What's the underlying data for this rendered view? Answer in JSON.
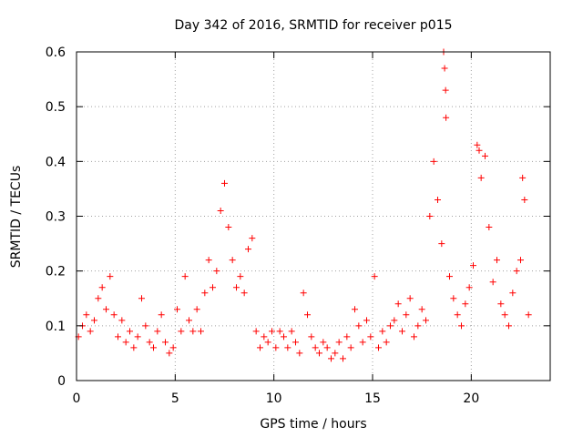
{
  "chart_data": {
    "type": "scatter",
    "title": "Day 342 of 2016, SRMTID for receiver p015",
    "xlabel": "GPS time / hours",
    "ylabel": "SRMTID / TECUs",
    "xlim": [
      0,
      24
    ],
    "ylim": [
      0,
      0.6
    ],
    "x_ticks": [
      0,
      5,
      10,
      15,
      20
    ],
    "x_tick_labels": [
      "0",
      "5",
      "10",
      "15",
      "20"
    ],
    "y_ticks": [
      0,
      0.1,
      0.2,
      0.3,
      0.4,
      0.5,
      0.6
    ],
    "y_tick_labels": [
      "0",
      "0.1",
      "0.2",
      "0.3",
      "0.4",
      "0.5",
      "0.6"
    ],
    "grid": true,
    "marker": "+",
    "color": "#ff0000",
    "series": [
      {
        "name": "SRMTID",
        "points": [
          [
            0.1,
            0.08
          ],
          [
            0.3,
            0.1
          ],
          [
            0.5,
            0.12
          ],
          [
            0.7,
            0.09
          ],
          [
            0.9,
            0.11
          ],
          [
            1.1,
            0.15
          ],
          [
            1.3,
            0.17
          ],
          [
            1.5,
            0.13
          ],
          [
            1.7,
            0.19
          ],
          [
            1.9,
            0.12
          ],
          [
            2.1,
            0.08
          ],
          [
            2.3,
            0.11
          ],
          [
            2.5,
            0.07
          ],
          [
            2.7,
            0.09
          ],
          [
            2.9,
            0.06
          ],
          [
            3.1,
            0.08
          ],
          [
            3.3,
            0.15
          ],
          [
            3.5,
            0.1
          ],
          [
            3.7,
            0.07
          ],
          [
            3.9,
            0.06
          ],
          [
            4.1,
            0.09
          ],
          [
            4.3,
            0.12
          ],
          [
            4.5,
            0.07
          ],
          [
            4.7,
            0.05
          ],
          [
            4.9,
            0.06
          ],
          [
            5.1,
            0.13
          ],
          [
            5.3,
            0.09
          ],
          [
            5.5,
            0.19
          ],
          [
            5.7,
            0.11
          ],
          [
            5.9,
            0.09
          ],
          [
            6.1,
            0.13
          ],
          [
            6.3,
            0.09
          ],
          [
            6.5,
            0.16
          ],
          [
            6.7,
            0.22
          ],
          [
            6.9,
            0.17
          ],
          [
            7.1,
            0.2
          ],
          [
            7.3,
            0.31
          ],
          [
            7.5,
            0.36
          ],
          [
            7.7,
            0.28
          ],
          [
            7.9,
            0.22
          ],
          [
            8.1,
            0.17
          ],
          [
            8.3,
            0.19
          ],
          [
            8.5,
            0.16
          ],
          [
            8.7,
            0.24
          ],
          [
            8.9,
            0.26
          ],
          [
            9.1,
            0.09
          ],
          [
            9.3,
            0.06
          ],
          [
            9.5,
            0.08
          ],
          [
            9.7,
            0.07
          ],
          [
            9.9,
            0.09
          ],
          [
            10.1,
            0.06
          ],
          [
            10.3,
            0.09
          ],
          [
            10.5,
            0.08
          ],
          [
            10.7,
            0.06
          ],
          [
            10.9,
            0.09
          ],
          [
            11.1,
            0.07
          ],
          [
            11.3,
            0.05
          ],
          [
            11.5,
            0.16
          ],
          [
            11.7,
            0.12
          ],
          [
            11.9,
            0.08
          ],
          [
            12.1,
            0.06
          ],
          [
            12.3,
            0.05
          ],
          [
            12.5,
            0.07
          ],
          [
            12.7,
            0.06
          ],
          [
            12.9,
            0.04
          ],
          [
            13.1,
            0.05
          ],
          [
            13.3,
            0.07
          ],
          [
            13.5,
            0.04
          ],
          [
            13.7,
            0.08
          ],
          [
            13.9,
            0.06
          ],
          [
            14.1,
            0.13
          ],
          [
            14.3,
            0.1
          ],
          [
            14.5,
            0.07
          ],
          [
            14.7,
            0.11
          ],
          [
            14.9,
            0.08
          ],
          [
            15.1,
            0.19
          ],
          [
            15.3,
            0.06
          ],
          [
            15.5,
            0.09
          ],
          [
            15.7,
            0.07
          ],
          [
            15.9,
            0.1
          ],
          [
            16.1,
            0.11
          ],
          [
            16.3,
            0.14
          ],
          [
            16.5,
            0.09
          ],
          [
            16.7,
            0.12
          ],
          [
            16.9,
            0.15
          ],
          [
            17.1,
            0.08
          ],
          [
            17.3,
            0.1
          ],
          [
            17.5,
            0.13
          ],
          [
            17.7,
            0.11
          ],
          [
            17.9,
            0.3
          ],
          [
            18.1,
            0.4
          ],
          [
            18.3,
            0.33
          ],
          [
            18.5,
            0.25
          ],
          [
            18.6,
            0.6
          ],
          [
            18.65,
            0.57
          ],
          [
            18.7,
            0.53
          ],
          [
            18.72,
            0.48
          ],
          [
            18.9,
            0.19
          ],
          [
            19.1,
            0.15
          ],
          [
            19.3,
            0.12
          ],
          [
            19.5,
            0.1
          ],
          [
            19.7,
            0.14
          ],
          [
            19.9,
            0.17
          ],
          [
            20.1,
            0.21
          ],
          [
            20.3,
            0.43
          ],
          [
            20.4,
            0.42
          ],
          [
            20.5,
            0.37
          ],
          [
            20.7,
            0.41
          ],
          [
            20.9,
            0.28
          ],
          [
            21.1,
            0.18
          ],
          [
            21.3,
            0.22
          ],
          [
            21.5,
            0.14
          ],
          [
            21.7,
            0.12
          ],
          [
            21.9,
            0.1
          ],
          [
            22.1,
            0.16
          ],
          [
            22.3,
            0.2
          ],
          [
            22.5,
            0.22
          ],
          [
            22.6,
            0.37
          ],
          [
            22.7,
            0.33
          ],
          [
            22.9,
            0.12
          ]
        ]
      }
    ]
  }
}
